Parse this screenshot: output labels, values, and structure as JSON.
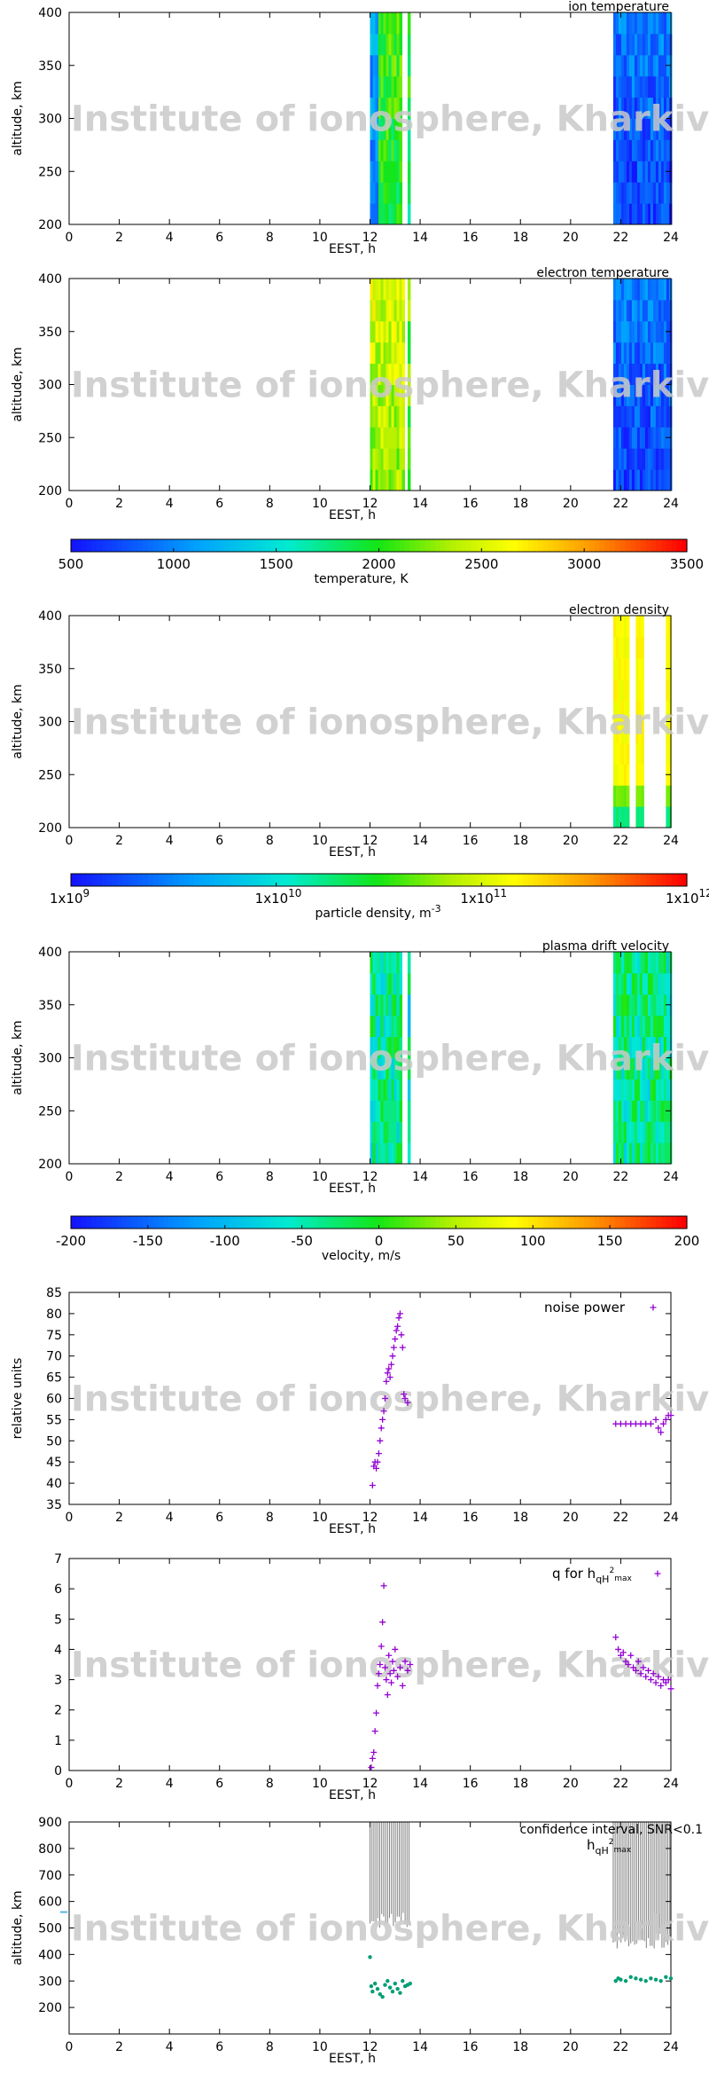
{
  "watermark": "Institute of ionosphere, Kharkiv",
  "colors": {
    "ion": "#1a1aff",
    "noise": "#9400d3",
    "hqh": "#009e73",
    "confidence": "#7f7f7f",
    "tick_marker": "#56b4e9"
  },
  "chart_data": [
    {
      "id": "ion-temperature",
      "type": "heatmap",
      "title": "ion temperature",
      "xlabel": "EEST, h",
      "ylabel": "altitude, km",
      "xlim": [
        0,
        24
      ],
      "ylim": [
        200,
        400
      ],
      "xticks": [
        "0",
        "2",
        "4",
        "6",
        "8",
        "10",
        "12",
        "14",
        "16",
        "18",
        "20",
        "22",
        "24"
      ],
      "yticks": [
        "200",
        "250",
        "300",
        "350",
        "400"
      ],
      "colorscale": "temperature",
      "blocks": [
        {
          "x0": 12.0,
          "x1": 13.2,
          "value": 1900
        },
        {
          "x0": 12.0,
          "x1": 12.3,
          "value": 900
        },
        {
          "x0": 13.5,
          "x1": 13.6,
          "value": 1800
        },
        {
          "x0": 21.7,
          "x1": 24.0,
          "value": 700
        }
      ]
    },
    {
      "id": "electron-temperature",
      "type": "heatmap",
      "title": "electron temperature",
      "xlabel": "EEST, h",
      "ylabel": "altitude, km",
      "xlim": [
        0,
        24
      ],
      "ylim": [
        200,
        400
      ],
      "xticks": [
        "0",
        "2",
        "4",
        "6",
        "8",
        "10",
        "12",
        "14",
        "16",
        "18",
        "20",
        "22",
        "24"
      ],
      "yticks": [
        "200",
        "250",
        "300",
        "350",
        "400"
      ],
      "colorscale": "temperature",
      "blocks": [
        {
          "x0": 12.0,
          "x1": 13.3,
          "value": 2300
        },
        {
          "x0": 13.5,
          "x1": 13.6,
          "value": 2000
        },
        {
          "x0": 21.7,
          "x1": 24.0,
          "value": 700
        }
      ]
    },
    {
      "id": "temperature-scale",
      "type": "colorbar",
      "label": "temperature, K",
      "ticks": [
        "500",
        "1000",
        "1500",
        "2000",
        "2500",
        "3000",
        "3500"
      ],
      "range": [
        500,
        3500
      ]
    },
    {
      "id": "electron-density",
      "type": "heatmap",
      "title": "electron density",
      "xlabel": "EEST, h",
      "ylabel": "altitude, km",
      "xlim": [
        0,
        24
      ],
      "ylim": [
        200,
        400
      ],
      "xticks": [
        "0",
        "2",
        "4",
        "6",
        "8",
        "10",
        "12",
        "14",
        "16",
        "18",
        "20",
        "22",
        "24"
      ],
      "yticks": [
        "200",
        "250",
        "300",
        "350",
        "400"
      ],
      "colorscale": "density",
      "blocks": [
        {
          "x0": 21.7,
          "x1": 22.3,
          "value": 0.72
        },
        {
          "x0": 22.6,
          "x1": 22.9,
          "value": 0.72
        },
        {
          "x0": 23.8,
          "x1": 24.0,
          "value": 0.72
        }
      ]
    },
    {
      "id": "density-scale",
      "type": "colorbar",
      "label": "particle density, m",
      "label_sup": "-3",
      "ticks": [
        {
          "base": "1x10",
          "exp": "9"
        },
        {
          "base": "1x10",
          "exp": "10"
        },
        {
          "base": "1x10",
          "exp": "11"
        },
        {
          "base": "1x10",
          "exp": "12"
        }
      ]
    },
    {
      "id": "plasma-drift-velocity",
      "type": "heatmap",
      "title": "plasma drift velocity",
      "xlabel": "EEST, h",
      "ylabel": "altitude, km",
      "xlim": [
        0,
        24
      ],
      "ylim": [
        200,
        400
      ],
      "xticks": [
        "0",
        "2",
        "4",
        "6",
        "8",
        "10",
        "12",
        "14",
        "16",
        "18",
        "20",
        "22",
        "24"
      ],
      "yticks": [
        "200",
        "250",
        "300",
        "350",
        "400"
      ],
      "colorscale": "velocity",
      "blocks": [
        {
          "x0": 12.0,
          "x1": 13.2,
          "value": -40
        },
        {
          "x0": 13.5,
          "x1": 13.6,
          "value": -60
        },
        {
          "x0": 21.7,
          "x1": 24.0,
          "value": -40
        }
      ]
    },
    {
      "id": "velocity-scale",
      "type": "colorbar",
      "label": "velocity, m/s",
      "ticks": [
        "-200",
        "-150",
        "-100",
        "-50",
        "0",
        "50",
        "100",
        "150",
        "200"
      ],
      "range": [
        -200,
        200
      ]
    },
    {
      "id": "noise-power",
      "type": "scatter",
      "legend": "noise power",
      "xlabel": "EEST, h",
      "ylabel": "relative units",
      "xlim": [
        0,
        24
      ],
      "ylim": [
        35,
        85
      ],
      "xticks": [
        "0",
        "2",
        "4",
        "6",
        "8",
        "10",
        "12",
        "14",
        "16",
        "18",
        "20",
        "22",
        "24"
      ],
      "yticks": [
        "35",
        "40",
        "45",
        "50",
        "55",
        "60",
        "65",
        "70",
        "75",
        "80",
        "85"
      ],
      "series": [
        {
          "name": "noise power",
          "points": [
            [
              12.1,
              39.5
            ],
            [
              12.15,
              44
            ],
            [
              12.2,
              45
            ],
            [
              12.25,
              43.5
            ],
            [
              12.3,
              45
            ],
            [
              12.35,
              47
            ],
            [
              12.4,
              50
            ],
            [
              12.45,
              53
            ],
            [
              12.5,
              55
            ],
            [
              12.55,
              57
            ],
            [
              12.6,
              60
            ],
            [
              12.65,
              64
            ],
            [
              12.7,
              66
            ],
            [
              12.75,
              67
            ],
            [
              12.8,
              65
            ],
            [
              12.85,
              68
            ],
            [
              12.9,
              70
            ],
            [
              12.95,
              72
            ],
            [
              13.0,
              74
            ],
            [
              13.05,
              76
            ],
            [
              13.1,
              77
            ],
            [
              13.15,
              79
            ],
            [
              13.2,
              80
            ],
            [
              13.25,
              75
            ],
            [
              13.3,
              72
            ],
            [
              13.35,
              61
            ],
            [
              13.4,
              60
            ],
            [
              13.5,
              59
            ],
            [
              21.8,
              54
            ],
            [
              22.0,
              54
            ],
            [
              22.2,
              54
            ],
            [
              22.4,
              54
            ],
            [
              22.6,
              54
            ],
            [
              22.8,
              54
            ],
            [
              23.0,
              54
            ],
            [
              23.2,
              54
            ],
            [
              23.4,
              55
            ],
            [
              23.5,
              53
            ],
            [
              23.6,
              52
            ],
            [
              23.7,
              54
            ],
            [
              23.8,
              55
            ],
            [
              23.9,
              56
            ],
            [
              24.0,
              56
            ]
          ]
        }
      ]
    },
    {
      "id": "q-for-hqh",
      "type": "scatter",
      "legend": "q for h",
      "legend_sub1": "qH",
      "legend_sup": "2",
      "legend_sub2": "max",
      "xlabel": "EEST, h",
      "ylabel": "",
      "xlim": [
        0,
        24
      ],
      "ylim": [
        0,
        7
      ],
      "xticks": [
        "0",
        "2",
        "4",
        "6",
        "8",
        "10",
        "12",
        "14",
        "16",
        "18",
        "20",
        "22",
        "24"
      ],
      "yticks": [
        "0",
        "1",
        "2",
        "3",
        "4",
        "5",
        "6",
        "7"
      ],
      "series": [
        {
          "name": "q for hqH2max",
          "points": [
            [
              12.05,
              0.1
            ],
            [
              12.1,
              0.4
            ],
            [
              12.15,
              0.6
            ],
            [
              12.2,
              1.3
            ],
            [
              12.25,
              1.9
            ],
            [
              12.3,
              2.8
            ],
            [
              12.35,
              3.2
            ],
            [
              12.4,
              3.5
            ],
            [
              12.45,
              4.1
            ],
            [
              12.5,
              4.9
            ],
            [
              12.55,
              6.1
            ],
            [
              12.6,
              3.4
            ],
            [
              12.65,
              3.0
            ],
            [
              12.7,
              2.5
            ],
            [
              12.75,
              3.8
            ],
            [
              12.8,
              3.2
            ],
            [
              12.85,
              2.9
            ],
            [
              12.9,
              3.6
            ],
            [
              12.95,
              3.3
            ],
            [
              13.0,
              4.0
            ],
            [
              13.1,
              3.1
            ],
            [
              13.2,
              3.4
            ],
            [
              13.3,
              2.8
            ],
            [
              13.4,
              3.6
            ],
            [
              13.5,
              3.3
            ],
            [
              13.6,
              3.5
            ],
            [
              21.8,
              4.4
            ],
            [
              21.9,
              4.0
            ],
            [
              22.0,
              3.8
            ],
            [
              22.1,
              3.9
            ],
            [
              22.2,
              3.6
            ],
            [
              22.3,
              3.5
            ],
            [
              22.4,
              3.8
            ],
            [
              22.5,
              3.4
            ],
            [
              22.6,
              3.3
            ],
            [
              22.7,
              3.6
            ],
            [
              22.8,
              3.2
            ],
            [
              22.9,
              3.4
            ],
            [
              23.0,
              3.1
            ],
            [
              23.1,
              3.3
            ],
            [
              23.2,
              3.0
            ],
            [
              23.3,
              3.2
            ],
            [
              23.4,
              2.9
            ],
            [
              23.5,
              3.1
            ],
            [
              23.6,
              2.8
            ],
            [
              23.7,
              3.0
            ],
            [
              23.8,
              2.9
            ],
            [
              23.9,
              3.0
            ],
            [
              24.0,
              2.7
            ]
          ]
        }
      ]
    },
    {
      "id": "confidence-interval",
      "type": "scatter",
      "legend": "confidence interval, SNR<0.1",
      "legend2": "h",
      "legend2_sub1": "qH",
      "legend2_sup": "2",
      "legend2_sub2": "max",
      "xlabel": "EEST, h",
      "ylabel": "altitude, km",
      "xlim": [
        0,
        24
      ],
      "ylim": [
        100,
        900
      ],
      "xticks": [
        "0",
        "2",
        "4",
        "6",
        "8",
        "10",
        "12",
        "14",
        "16",
        "18",
        "20",
        "22",
        "24"
      ],
      "yticks": [
        "200",
        "300",
        "400",
        "500",
        "600",
        "700",
        "800",
        "900"
      ],
      "bands": [
        {
          "x0": 12.0,
          "x1": 13.6,
          "y0": 560,
          "y1": 900
        },
        {
          "x0": 21.7,
          "x1": 24.0,
          "y0": 480,
          "y1": 900
        }
      ],
      "series": [
        {
          "name": "hqH2max",
          "points": [
            [
              12.0,
              390
            ],
            [
              12.05,
              280
            ],
            [
              12.1,
              260
            ],
            [
              12.2,
              290
            ],
            [
              12.3,
              270
            ],
            [
              12.4,
              250
            ],
            [
              12.5,
              240
            ],
            [
              12.6,
              285
            ],
            [
              12.7,
              300
            ],
            [
              12.8,
              275
            ],
            [
              12.9,
              260
            ],
            [
              13.0,
              290
            ],
            [
              13.1,
              270
            ],
            [
              13.2,
              255
            ],
            [
              13.3,
              300
            ],
            [
              13.4,
              280
            ],
            [
              13.5,
              285
            ],
            [
              13.6,
              290
            ],
            [
              21.8,
              300
            ],
            [
              21.9,
              310
            ],
            [
              22.0,
              305
            ],
            [
              22.2,
              300
            ],
            [
              22.4,
              315
            ],
            [
              22.6,
              310
            ],
            [
              22.8,
              305
            ],
            [
              23.0,
              300
            ],
            [
              23.2,
              310
            ],
            [
              23.4,
              305
            ],
            [
              23.6,
              300
            ],
            [
              23.8,
              315
            ],
            [
              24.0,
              310
            ]
          ]
        }
      ]
    }
  ]
}
